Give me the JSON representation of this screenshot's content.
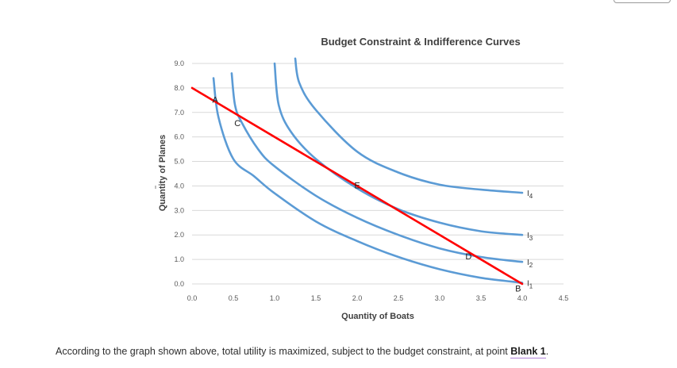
{
  "chart_data": {
    "type": "line",
    "title": "Budget Constraint & Indifference Curves",
    "xlabel": "Quantity of Boats",
    "ylabel": "Quantity of Planes",
    "xlim": [
      0,
      4.5
    ],
    "ylim": [
      0,
      9
    ],
    "x_ticks": [
      "0.0",
      "0.5",
      "1.0",
      "1.5",
      "2.0",
      "2.5",
      "3.0",
      "3.5",
      "4.0",
      "4.5"
    ],
    "y_ticks": [
      "0.0",
      "1.0",
      "2.0",
      "3.0",
      "4.0",
      "5.0",
      "6.0",
      "7.0",
      "8.0",
      "9.0"
    ],
    "grid": "horizontal",
    "budget_line": {
      "color": "#ff0000",
      "x": [
        0,
        4.0
      ],
      "y": [
        8.0,
        0
      ]
    },
    "indifference_curves": [
      {
        "label_main": "I",
        "label_sub": "1",
        "color": "#5b9bd5",
        "x": [
          0.26,
          0.32,
          0.5,
          0.75,
          1.0,
          1.5,
          2.0,
          2.5,
          3.0,
          3.5,
          4.0
        ],
        "y": [
          8.4,
          6.8,
          5.1,
          4.4,
          3.7,
          2.55,
          1.75,
          1.1,
          0.6,
          0.25,
          0.05
        ]
      },
      {
        "label_main": "I",
        "label_sub": "2",
        "color": "#5b9bd5",
        "x": [
          0.48,
          0.52,
          0.6,
          0.8,
          1.0,
          1.5,
          2.0,
          2.5,
          3.0,
          3.5,
          4.0
        ],
        "y": [
          8.6,
          7.3,
          6.6,
          5.5,
          4.8,
          3.6,
          2.7,
          2.0,
          1.45,
          1.1,
          0.9
        ]
      },
      {
        "label_main": "I",
        "label_sub": "3",
        "color": "#5b9bd5",
        "x": [
          1.0,
          1.05,
          1.2,
          1.5,
          2.0,
          2.5,
          3.0,
          3.5,
          4.0
        ],
        "y": [
          9.0,
          7.3,
          6.2,
          5.1,
          3.9,
          3.05,
          2.5,
          2.15,
          2.0
        ]
      },
      {
        "label_main": "I",
        "label_sub": "4",
        "color": "#5b9bd5",
        "x": [
          1.25,
          1.3,
          1.5,
          2.0,
          2.5,
          3.0,
          3.5,
          4.0
        ],
        "y": [
          9.2,
          8.2,
          7.1,
          5.4,
          4.55,
          4.05,
          3.85,
          3.72
        ]
      }
    ],
    "points": [
      {
        "label": "A",
        "x": 0.28,
        "y": 7.4
      },
      {
        "label": "C",
        "x": 0.55,
        "y": 6.45
      },
      {
        "label": "E",
        "x": 2.0,
        "y": 3.9
      },
      {
        "label": "D",
        "x": 3.35,
        "y": 1.0
      },
      {
        "label": "B",
        "x": 3.95,
        "y": -0.3
      }
    ]
  },
  "question": {
    "text": "According to the graph shown above, total utility is maximized, subject to the budget constraint, at point ",
    "blank_label": "Blank 1",
    "suffix": "."
  }
}
